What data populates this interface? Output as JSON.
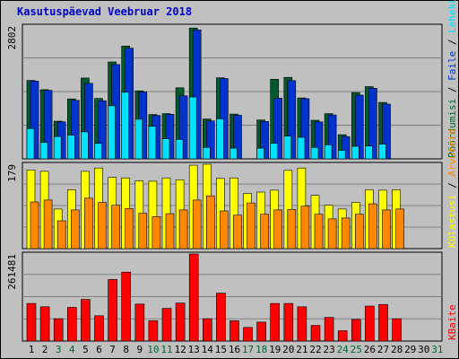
{
  "chart_data": {
    "type": "bar",
    "title": "Kasutuspäevad Veebruar 2018",
    "days": [
      "1",
      "2",
      "3",
      "4",
      "5",
      "6",
      "7",
      "8",
      "9",
      "10",
      "11",
      "12",
      "13",
      "14",
      "15",
      "16",
      "17",
      "18",
      "19",
      "20",
      "21",
      "22",
      "23",
      "24",
      "25",
      "26",
      "27",
      "28",
      "29",
      "30",
      "31"
    ],
    "weekend_days": [
      "3",
      "4",
      "10",
      "11",
      "17",
      "18",
      "24",
      "25",
      "31"
    ],
    "colors": {
      "title": "#0000cc",
      "weekend_label": "#006633",
      "hits": "#005a2d",
      "files": "#0033cc",
      "pages": "#00e0ff",
      "visits": "#ffff00",
      "sites": "#ff8800",
      "kbytes": "#ff0000"
    },
    "panels": [
      {
        "max_label": "2802",
        "axis_max": 2802,
        "series": [
          {
            "name": "Pöördumisi",
            "color_key": "hits",
            "legend_color": "#006633",
            "values": [
              1655,
              1460,
              795,
              1265,
              1705,
              1275,
              2045,
              2380,
              1435,
              935,
              955,
              1500,
              2760,
              840,
              1710,
              945,
              null,
              820,
              1680,
              1720,
              1285,
              815,
              955,
              510,
              1400,
              1525,
              1190,
              null,
              null,
              null,
              null
            ]
          },
          {
            "name": "Faile",
            "color_key": "files",
            "legend_color": "#0033cc",
            "values": [
              1640,
              1445,
              780,
              1235,
              1595,
              1225,
              1990,
              2335,
              1415,
              915,
              940,
              1330,
              2720,
              800,
              1695,
              920,
              null,
              790,
              1280,
              1650,
              1270,
              780,
              925,
              470,
              1345,
              1490,
              1155,
              null,
              null,
              null,
              null
            ]
          },
          {
            "name": "Lehekülgi",
            "color_key": "pages",
            "legend_color": "#00e0ff",
            "values": [
              640,
              345,
              470,
              500,
              570,
              325,
              1120,
              1405,
              835,
              685,
              425,
              410,
              1305,
              240,
              845,
              225,
              null,
              225,
              330,
              480,
              455,
              240,
              295,
              180,
              265,
              270,
              310,
              null,
              null,
              null,
              null
            ]
          }
        ]
      },
      {
        "max_label": "179",
        "axis_max": 179,
        "series": [
          {
            "name": "Külastusi",
            "color_key": "visits",
            "legend_color": "#ffff00",
            "values": [
              167,
              164,
              84,
              125,
              164,
              171,
              151,
              150,
              144,
              143,
              150,
              146,
              177,
              179,
              149,
              150,
              117,
              120,
              124,
              166,
              171,
              113,
              92,
              84,
              98,
              125,
              124,
              125,
              null,
              null,
              null
            ]
          },
          {
            "name": "Arvuteid",
            "color_key": "sites",
            "legend_color": "#ff8800",
            "values": [
              99,
              103,
              59,
              82,
              107,
              98,
              92,
              85,
              75,
              68,
              74,
              82,
              103,
              112,
              80,
              71,
              97,
              73,
              82,
              83,
              90,
              73,
              63,
              65,
              73,
              95,
              82,
              84,
              null,
              null,
              null
            ]
          }
        ]
      },
      {
        "max_label": "261481",
        "axis_max": 261481,
        "series": [
          {
            "name": "KBaite",
            "color_key": "kbytes",
            "legend_color": "#ff0000",
            "values": [
              113000,
              103000,
              67000,
              101000,
              125000,
              76000,
              185000,
              207000,
              111000,
              61000,
              98000,
              114000,
              261481,
              67000,
              144000,
              61000,
              41000,
              57000,
              113000,
              113000,
              103000,
              47000,
              71000,
              31000,
              65000,
              105000,
              110000,
              67000,
              null,
              null,
              null
            ]
          }
        ]
      }
    ],
    "legend_separator": "/"
  }
}
